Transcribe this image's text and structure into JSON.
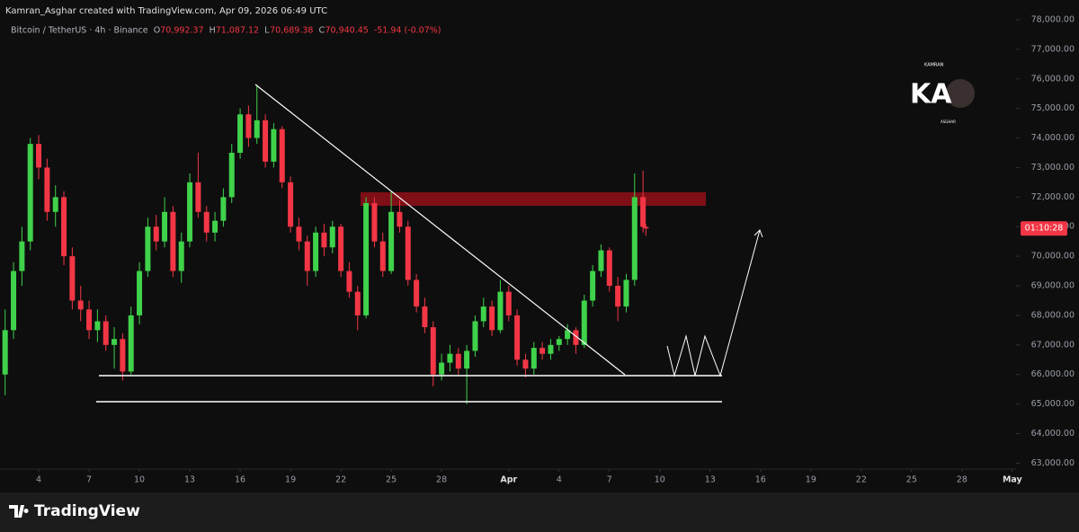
{
  "header": {
    "credit": "Kamran_Asghar created with TradingView.com, Apr 09, 2026 06:49 UTC"
  },
  "logo": {
    "top": "KAMRAN",
    "main": "KA",
    "bottom": "ASGHAR"
  },
  "footer": {
    "brand": "TradingView"
  },
  "chart_data": {
    "type": "candlestick",
    "symbol": "Bitcoin / TetherUS · 4h · Binance",
    "ohlc_names": [
      "O",
      "H",
      "L",
      "C"
    ],
    "last_labels": [
      "70,992.37",
      "71,087.12",
      "70,689.38",
      "70,940.45"
    ],
    "change": "-51.94 (-0.07%)",
    "countdown": "01:10:28",
    "up_color": "#3fd24a",
    "down_color": "#f23645",
    "x": [
      "2026-03-02 00:00",
      "2026-03-02 12:00",
      "2026-03-03 00:00",
      "2026-03-03 12:00",
      "2026-03-04 00:00",
      "2026-03-04 12:00",
      "2026-03-05 00:00",
      "2026-03-05 12:00",
      "2026-03-06 00:00",
      "2026-03-06 12:00",
      "2026-03-07 00:00",
      "2026-03-07 12:00",
      "2026-03-08 00:00",
      "2026-03-08 12:00",
      "2026-03-09 00:00",
      "2026-03-09 12:00",
      "2026-03-10 00:00",
      "2026-03-10 12:00",
      "2026-03-11 00:00",
      "2026-03-11 12:00",
      "2026-03-12 00:00",
      "2026-03-12 12:00",
      "2026-03-13 00:00",
      "2026-03-13 12:00",
      "2026-03-14 00:00",
      "2026-03-14 12:00",
      "2026-03-15 00:00",
      "2026-03-15 12:00",
      "2026-03-16 00:00",
      "2026-03-16 12:00",
      "2026-03-17 00:00",
      "2026-03-17 12:00",
      "2026-03-18 00:00",
      "2026-03-18 12:00",
      "2026-03-19 00:00",
      "2026-03-19 12:00",
      "2026-03-20 00:00",
      "2026-03-20 12:00",
      "2026-03-21 00:00",
      "2026-03-21 12:00",
      "2026-03-22 00:00",
      "2026-03-22 12:00",
      "2026-03-23 00:00",
      "2026-03-23 12:00",
      "2026-03-24 00:00",
      "2026-03-24 12:00",
      "2026-03-25 00:00",
      "2026-03-25 12:00",
      "2026-03-26 00:00",
      "2026-03-26 12:00",
      "2026-03-27 00:00",
      "2026-03-27 12:00",
      "2026-03-28 00:00",
      "2026-03-28 12:00",
      "2026-03-29 00:00",
      "2026-03-29 12:00",
      "2026-03-30 00:00",
      "2026-03-30 12:00",
      "2026-03-31 00:00",
      "2026-03-31 12:00",
      "2026-04-01 00:00",
      "2026-04-01 12:00",
      "2026-04-02 00:00",
      "2026-04-02 12:00",
      "2026-04-03 00:00",
      "2026-04-03 12:00",
      "2026-04-04 00:00",
      "2026-04-04 12:00",
      "2026-04-05 00:00",
      "2026-04-05 12:00",
      "2026-04-06 00:00",
      "2026-04-06 12:00",
      "2026-04-07 00:00",
      "2026-04-07 12:00",
      "2026-04-08 00:00",
      "2026-04-08 12:00",
      "2026-04-09 00:00",
      "2026-04-09 04:00"
    ],
    "ohlc": [
      [
        66000,
        68200,
        65300,
        67500
      ],
      [
        67500,
        69800,
        67200,
        69500
      ],
      [
        69500,
        71000,
        69000,
        70500
      ],
      [
        70500,
        74000,
        70200,
        73800
      ],
      [
        73800,
        74100,
        72600,
        73000
      ],
      [
        73000,
        73300,
        71200,
        71500
      ],
      [
        71500,
        72400,
        71000,
        72000
      ],
      [
        72000,
        72200,
        69700,
        70000
      ],
      [
        70000,
        70300,
        68200,
        68500
      ],
      [
        68500,
        69000,
        67800,
        68200
      ],
      [
        68200,
        68500,
        67200,
        67500
      ],
      [
        67500,
        68200,
        67100,
        67800
      ],
      [
        67800,
        68000,
        66800,
        67000
      ],
      [
        67000,
        67600,
        66200,
        67200
      ],
      [
        67200,
        67400,
        65800,
        66100
      ],
      [
        66100,
        68300,
        66000,
        68000
      ],
      [
        68000,
        69800,
        67700,
        69500
      ],
      [
        69500,
        71300,
        69300,
        71000
      ],
      [
        71000,
        71400,
        70200,
        70500
      ],
      [
        70500,
        72000,
        70300,
        71500
      ],
      [
        71500,
        71700,
        69300,
        69500
      ],
      [
        69500,
        70800,
        69100,
        70500
      ],
      [
        70500,
        72800,
        70300,
        72500
      ],
      [
        72500,
        73500,
        71300,
        71500
      ],
      [
        71500,
        71700,
        70500,
        70800
      ],
      [
        70800,
        71500,
        70500,
        71200
      ],
      [
        71200,
        72300,
        71000,
        72000
      ],
      [
        72000,
        73800,
        71800,
        73500
      ],
      [
        73500,
        75000,
        73300,
        74800
      ],
      [
        74800,
        75100,
        73700,
        74000
      ],
      [
        74000,
        75800,
        73800,
        74600
      ],
      [
        74600,
        74800,
        73000,
        73200
      ],
      [
        73200,
        74500,
        73000,
        74300
      ],
      [
        74300,
        74400,
        72300,
        72500
      ],
      [
        72500,
        72700,
        70800,
        71000
      ],
      [
        71000,
        71300,
        70200,
        70500
      ],
      [
        70500,
        70700,
        69000,
        69500
      ],
      [
        69500,
        71000,
        69300,
        70800
      ],
      [
        70800,
        71100,
        70000,
        70300
      ],
      [
        70300,
        71200,
        70100,
        71000
      ],
      [
        71000,
        71100,
        69300,
        69500
      ],
      [
        69500,
        69800,
        68600,
        68800
      ],
      [
        68800,
        69000,
        67500,
        68000
      ],
      [
        68000,
        72000,
        67900,
        71800
      ],
      [
        71800,
        72000,
        70300,
        70500
      ],
      [
        70500,
        70800,
        69300,
        69500
      ],
      [
        69500,
        72200,
        69400,
        71500
      ],
      [
        71500,
        71900,
        70800,
        71000
      ],
      [
        71000,
        71200,
        69000,
        69200
      ],
      [
        69200,
        69400,
        68100,
        68300
      ],
      [
        68300,
        68600,
        67400,
        67600
      ],
      [
        67600,
        67800,
        65600,
        66000
      ],
      [
        66000,
        66700,
        65800,
        66400
      ],
      [
        66400,
        67000,
        66100,
        66700
      ],
      [
        66700,
        66900,
        66000,
        66200
      ],
      [
        66200,
        67000,
        65000,
        66800
      ],
      [
        66800,
        68000,
        66600,
        67800
      ],
      [
        67800,
        68600,
        67600,
        68300
      ],
      [
        68300,
        68500,
        67300,
        67500
      ],
      [
        67500,
        69200,
        67400,
        68800
      ],
      [
        68800,
        69000,
        67800,
        68000
      ],
      [
        68000,
        68200,
        66300,
        66500
      ],
      [
        66500,
        66700,
        65900,
        66200
      ],
      [
        66200,
        67100,
        66000,
        66900
      ],
      [
        66900,
        67100,
        66500,
        66700
      ],
      [
        66700,
        67200,
        66500,
        67000
      ],
      [
        67000,
        67300,
        66800,
        67200
      ],
      [
        67200,
        67700,
        67000,
        67500
      ],
      [
        67500,
        67600,
        66700,
        67000
      ],
      [
        67000,
        68700,
        66900,
        68500
      ],
      [
        68500,
        69700,
        68300,
        69500
      ],
      [
        69500,
        70400,
        69300,
        70200
      ],
      [
        70200,
        70300,
        68800,
        69000
      ],
      [
        69000,
        69300,
        67800,
        68300
      ],
      [
        68300,
        69400,
        68100,
        69200
      ],
      [
        69200,
        72800,
        69000,
        72000
      ],
      [
        72000,
        72900,
        70800,
        70992.37
      ],
      [
        70992.37,
        71087.12,
        70689.38,
        70940.45
      ]
    ],
    "xlim": [
      "2026-03-01 16:40",
      "2026-05-01 05:20"
    ],
    "xticks": [
      {
        "value": "2026-03-04",
        "label": "4"
      },
      {
        "value": "2026-03-07",
        "label": "7"
      },
      {
        "value": "2026-03-10",
        "label": "10"
      },
      {
        "value": "2026-03-13",
        "label": "13"
      },
      {
        "value": "2026-03-16",
        "label": "16"
      },
      {
        "value": "2026-03-19",
        "label": "19"
      },
      {
        "value": "2026-03-22",
        "label": "22"
      },
      {
        "value": "2026-03-25",
        "label": "25"
      },
      {
        "value": "2026-03-28",
        "label": "28"
      },
      {
        "value": "2026-04-01",
        "label": "Apr"
      },
      {
        "value": "2026-04-04",
        "label": "4"
      },
      {
        "value": "2026-04-07",
        "label": "7"
      },
      {
        "value": "2026-04-10",
        "label": "10"
      },
      {
        "value": "2026-04-13",
        "label": "13"
      },
      {
        "value": "2026-04-16",
        "label": "16"
      },
      {
        "value": "2026-04-19",
        "label": "19"
      },
      {
        "value": "2026-04-22",
        "label": "22"
      },
      {
        "value": "2026-04-25",
        "label": "25"
      },
      {
        "value": "2026-04-28",
        "label": "28"
      },
      {
        "value": "2026-05-01",
        "label": "May"
      }
    ],
    "ylim": [
      62800,
      78060
    ],
    "yticks": [
      {
        "value": 63000,
        "label": "63,000.00"
      },
      {
        "value": 64000,
        "label": "64,000.00"
      },
      {
        "value": 65000,
        "label": "65,000.00"
      },
      {
        "value": 66000,
        "label": "66,000.00"
      },
      {
        "value": 67000,
        "label": "67,000.00"
      },
      {
        "value": 68000,
        "label": "68,000.00"
      },
      {
        "value": 69000,
        "label": "69,000.00"
      },
      {
        "value": 70000,
        "label": "70,000.00"
      },
      {
        "value": 71000,
        "label": "71,000.00"
      },
      {
        "value": 72000,
        "label": "72,000.00"
      },
      {
        "value": 73000,
        "label": "73,000.00"
      },
      {
        "value": 74000,
        "label": "74,000.00"
      },
      {
        "value": 75000,
        "label": "75,000.00"
      },
      {
        "value": 76000,
        "label": "76,000.00"
      },
      {
        "value": 77000,
        "label": "77,000.00"
      },
      {
        "value": 78000,
        "label": "78,000.00"
      }
    ]
  }
}
